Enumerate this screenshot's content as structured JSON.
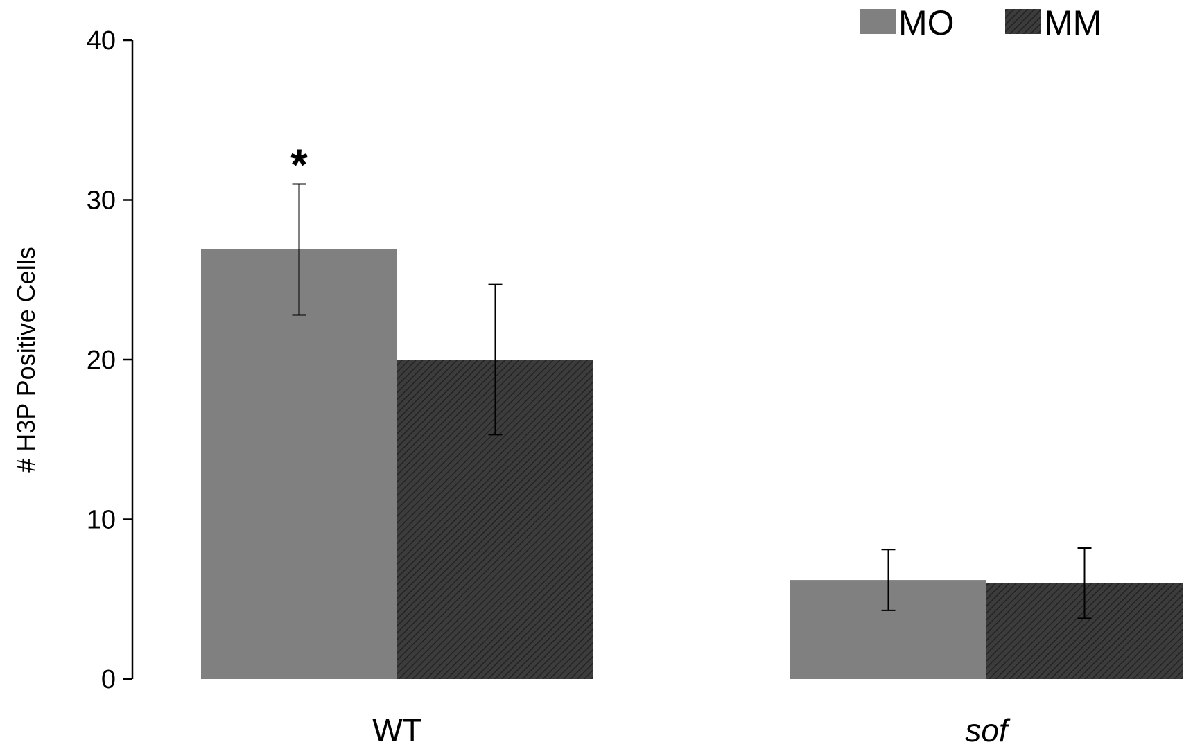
{
  "chart_data": {
    "type": "bar",
    "categories": [
      "WT",
      "sof"
    ],
    "category_styles": [
      "normal",
      "italic"
    ],
    "series": [
      {
        "name": "MO",
        "values": [
          26.9,
          6.2
        ],
        "errors": [
          4.1,
          1.9
        ],
        "color": "#808080",
        "pattern": "solid"
      },
      {
        "name": "MM",
        "values": [
          20.0,
          6.0
        ],
        "errors": [
          4.7,
          2.2
        ],
        "color": "#3c3c3c",
        "pattern": "diagonal-hatch"
      }
    ],
    "annotations": [
      {
        "text": "*",
        "category": "WT",
        "series": "MO"
      }
    ],
    "title": "",
    "xlabel": "",
    "ylabel": "# H3P Positive Cells",
    "ylim": [
      0,
      40
    ],
    "yticks": [
      0,
      10,
      20,
      30,
      40
    ],
    "grid": false,
    "legend_position": "top-right"
  }
}
